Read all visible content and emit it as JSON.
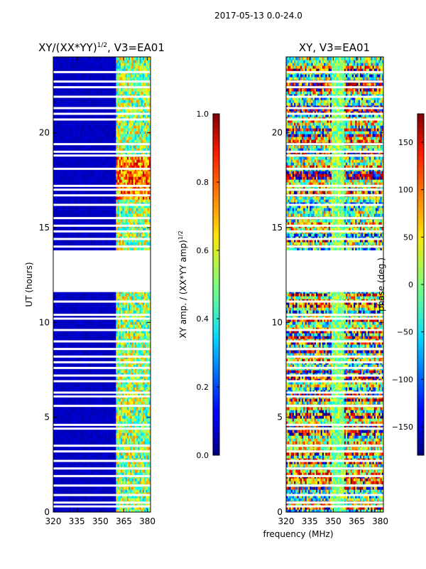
{
  "suptitle": "2017-05-13 0.0-24.0",
  "chart_data": [
    {
      "type": "heatmap",
      "title": "XY/(XX*YY)^1/2, V3=EA01",
      "title_main": "XY/(XX*YY)",
      "title_sup": "1/2",
      "title_rest": ", V3=EA01",
      "ylabel": "UT (hours)",
      "xlim": [
        320,
        382
      ],
      "ylim": [
        0,
        24
      ],
      "xticks": [
        320,
        335,
        350,
        365,
        380
      ],
      "yticks": [
        0,
        5,
        10,
        15,
        20
      ],
      "colormap": "jet",
      "colorbar": {
        "label": "XY amp. / (XX*YY amp)^1/2",
        "label_main": "XY amp. / (XX*YY amp)",
        "label_sup": "1/2",
        "range": [
          0.0,
          1.0
        ],
        "ticks": [
          "0.0",
          "0.2",
          "0.4",
          "0.6",
          "0.8",
          "1.0"
        ],
        "tick_values": [
          0.0,
          0.2,
          0.4,
          0.6,
          0.8,
          1.0
        ]
      },
      "gap_hours": [
        11.6,
        13.8
      ],
      "blank_rows_hours": [
        0.3,
        0.5,
        0.9,
        1.4,
        1.9,
        2.3,
        2.7,
        3.2,
        3.5,
        4.4,
        4.6,
        5.6,
        6.1,
        6.3,
        6.9,
        7.2,
        7.6,
        7.9,
        8.2,
        8.6,
        9.0,
        9.6,
        10.2,
        10.4,
        11.1,
        14.0,
        14.4,
        14.8,
        15.1,
        15.5,
        16.2,
        16.7,
        17.0,
        17.2,
        18.1,
        18.8,
        19.0,
        19.4,
        20.7,
        21.0,
        21.3,
        21.9,
        22.4,
        22.7,
        23.2
      ],
      "description_bands": [
        {
          "freq_range": [
            320,
            360
          ],
          "value": 0.02
        },
        {
          "freq_range": [
            360,
            382
          ],
          "value": 0.5
        }
      ]
    },
    {
      "type": "heatmap",
      "title": "XY, V3=EA01",
      "xlabel": "frequency (MHz)",
      "xlim": [
        320,
        382
      ],
      "ylim": [
        0,
        24
      ],
      "xticks": [
        320,
        335,
        350,
        365,
        380
      ],
      "yticks": [
        0,
        5,
        10,
        15,
        20
      ],
      "colormap": "jet",
      "colorbar": {
        "label": "phase (deg.)",
        "range": [
          -180,
          180
        ],
        "ticks": [
          "−150",
          "−100",
          "−50",
          "0",
          "50",
          "100",
          "150"
        ],
        "tick_values": [
          -150,
          -100,
          -50,
          0,
          50,
          100,
          150
        ]
      },
      "gap_hours": [
        11.6,
        13.8
      ],
      "blank_rows_hours": [
        0.3,
        0.5,
        0.9,
        1.4,
        1.9,
        2.3,
        2.7,
        3.2,
        3.5,
        4.4,
        4.6,
        5.6,
        6.1,
        6.3,
        6.9,
        7.2,
        7.6,
        7.9,
        8.2,
        8.6,
        9.0,
        9.6,
        10.2,
        10.4,
        11.1,
        14.0,
        14.4,
        14.8,
        15.1,
        15.5,
        16.2,
        16.7,
        17.0,
        17.2,
        18.1,
        18.8,
        19.0,
        19.4,
        20.7,
        21.0,
        21.3,
        21.9,
        22.4,
        22.7,
        23.2
      ],
      "description_bands": [
        {
          "freq_range": [
            350,
            356
          ],
          "value_deg": -10
        },
        {
          "freq_range": [
            320,
            382
          ],
          "value_deg": "mixed"
        }
      ]
    }
  ]
}
